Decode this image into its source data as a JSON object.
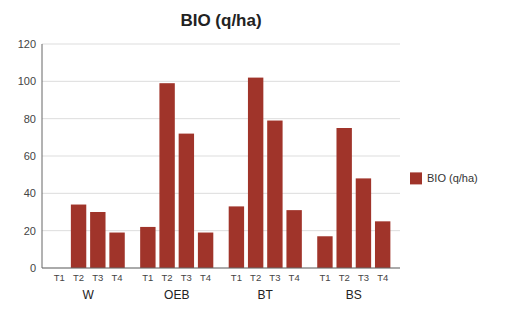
{
  "chart_data": {
    "type": "bar",
    "title": "BIO (q/ha)",
    "categories": [
      "T1",
      "T2",
      "T3",
      "T4",
      "T1",
      "T2",
      "T3",
      "T4",
      "T1",
      "T2",
      "T3",
      "T4",
      "T1",
      "T2",
      "T3",
      "T4"
    ],
    "groups": [
      "W",
      "OEB",
      "BT",
      "BS"
    ],
    "series": [
      {
        "name": "BIO (q/ha)",
        "color": "#A0342A",
        "values": [
          0,
          34,
          30,
          19,
          22,
          99,
          72,
          19,
          33,
          102,
          79,
          31,
          17,
          75,
          48,
          25
        ]
      }
    ],
    "ylim": [
      0,
      120
    ],
    "yticks": [
      0,
      20,
      40,
      60,
      80,
      100,
      120
    ],
    "grid": true,
    "legend": "right"
  }
}
